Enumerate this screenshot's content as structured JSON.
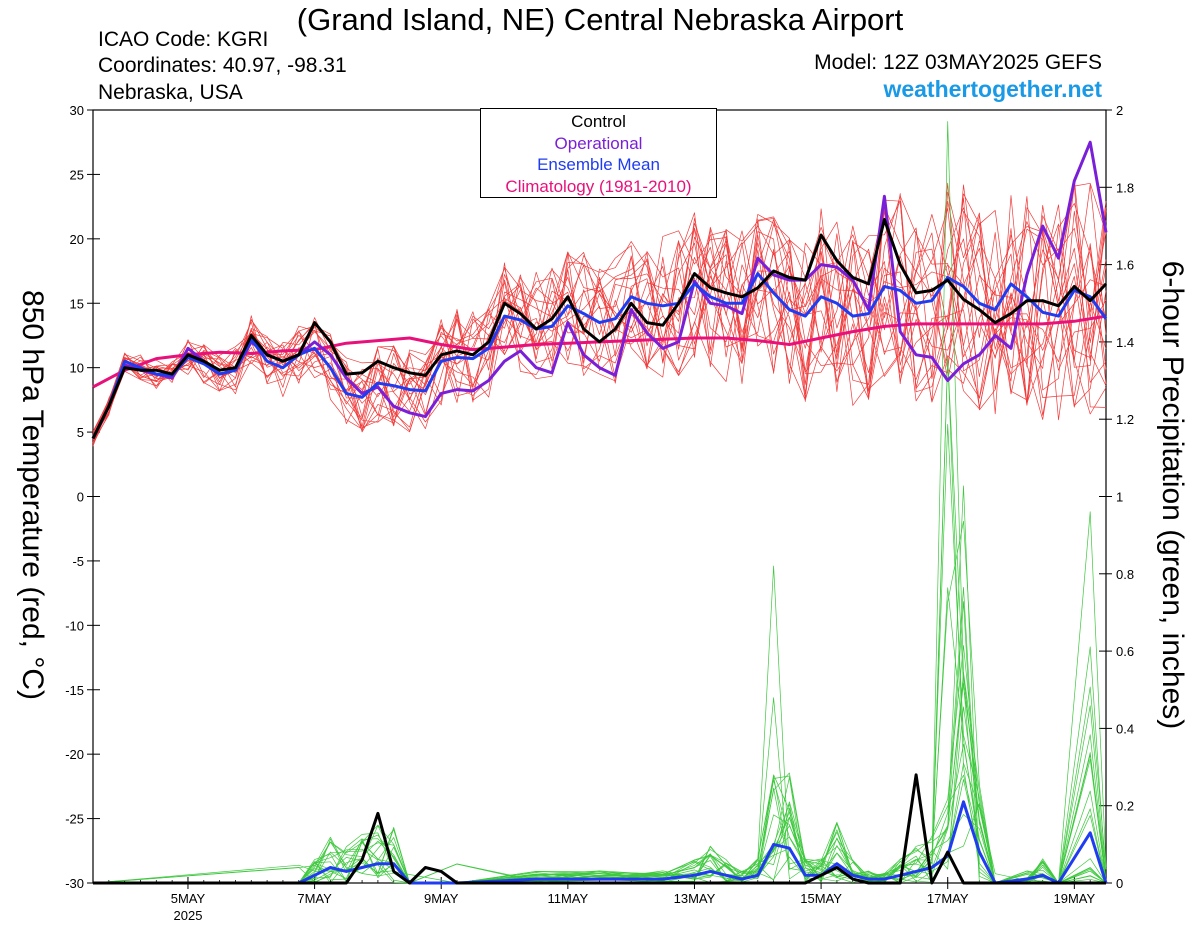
{
  "header": {
    "title": "(Grand Island, NE) Central Nebraska Airport",
    "icao": "ICAO Code: KGRI",
    "coordinates": "Coordinates: 40.97, -98.31",
    "region": "Nebraska, USA",
    "model": "Model: 12Z 03MAY2025 GEFS",
    "site": "weathertogether.net"
  },
  "colors": {
    "ensemble": "#f03c3c",
    "control": "#000000",
    "operational": "#7a1fd8",
    "ensemble_mean": "#1f3cf0",
    "climatology": "#e8107a",
    "precip": "#3ec83e",
    "site": "#1a9ae6"
  },
  "chart_data": {
    "type": "line",
    "ylabel_left": "850 hPa Temperature (red, °C)",
    "ylabel_right": "6-hour Precipitation (green, inches)",
    "ylim_left": [
      -30,
      30
    ],
    "ylim_right": [
      0,
      2
    ],
    "yticks_left": [
      "30",
      "25",
      "20",
      "15",
      "10",
      "5",
      "0",
      "-5",
      "-10",
      "-15",
      "-20",
      "-25",
      "-30"
    ],
    "yticks_right": [
      "2",
      "1.8",
      "1.6",
      "1.4",
      "1.2",
      "1",
      "0.8",
      "0.6",
      "0.4",
      "0.2",
      "0"
    ],
    "xlim": [
      3.5,
      19.5
    ],
    "xticks": [
      {
        "x": 5,
        "label": "5MAY",
        "sub": "2025"
      },
      {
        "x": 7,
        "label": "7MAY",
        "sub": ""
      },
      {
        "x": 9,
        "label": "9MAY",
        "sub": ""
      },
      {
        "x": 11,
        "label": "11MAY",
        "sub": ""
      },
      {
        "x": 13,
        "label": "13MAY",
        "sub": ""
      },
      {
        "x": 15,
        "label": "15MAY",
        "sub": ""
      },
      {
        "x": 17,
        "label": "17MAY",
        "sub": ""
      },
      {
        "x": 19,
        "label": "19MAY",
        "sub": ""
      }
    ],
    "legend": [
      "Control",
      "Operational",
      "Ensemble Mean",
      "Climatology (1981-2010)"
    ],
    "temperature": {
      "control": [
        [
          3.5,
          4.5
        ],
        [
          3.75,
          7
        ],
        [
          4,
          10
        ],
        [
          4.25,
          9.8
        ],
        [
          4.5,
          9.8
        ],
        [
          4.75,
          9.5
        ],
        [
          5,
          11
        ],
        [
          5.25,
          10.5
        ],
        [
          5.5,
          9.8
        ],
        [
          5.75,
          10
        ],
        [
          6,
          12.5
        ],
        [
          6.25,
          11
        ],
        [
          6.5,
          10.5
        ],
        [
          6.75,
          11
        ],
        [
          7,
          13.5
        ],
        [
          7.25,
          12
        ],
        [
          7.5,
          9.5
        ],
        [
          7.75,
          9.6
        ],
        [
          8,
          10.5
        ],
        [
          8.25,
          10
        ],
        [
          8.5,
          9.6
        ],
        [
          8.75,
          9.4
        ],
        [
          9,
          11
        ],
        [
          9.25,
          11.3
        ],
        [
          9.5,
          11
        ],
        [
          9.75,
          12
        ],
        [
          10,
          15
        ],
        [
          10.25,
          14.2
        ],
        [
          10.5,
          13
        ],
        [
          10.75,
          13.8
        ],
        [
          11,
          15.5
        ],
        [
          11.25,
          13
        ],
        [
          11.5,
          12
        ],
        [
          11.75,
          13
        ],
        [
          12,
          15
        ],
        [
          12.25,
          13.5
        ],
        [
          12.5,
          13.3
        ],
        [
          12.75,
          15
        ],
        [
          13,
          17.3
        ],
        [
          13.25,
          16.2
        ],
        [
          13.5,
          15.8
        ],
        [
          13.75,
          15.5
        ],
        [
          14,
          16.2
        ],
        [
          14.25,
          17.5
        ],
        [
          14.5,
          17
        ],
        [
          14.75,
          16.8
        ],
        [
          15,
          20.3
        ],
        [
          15.25,
          18.3
        ],
        [
          15.5,
          17
        ],
        [
          15.75,
          16.5
        ],
        [
          16,
          21.5
        ],
        [
          16.25,
          18
        ],
        [
          16.5,
          15.8
        ],
        [
          16.75,
          16
        ],
        [
          17,
          16.8
        ],
        [
          17.25,
          15.3
        ],
        [
          17.5,
          14.5
        ],
        [
          17.75,
          13.5
        ],
        [
          18,
          14.2
        ],
        [
          18.25,
          15.2
        ],
        [
          18.5,
          15.2
        ],
        [
          18.75,
          14.8
        ],
        [
          19,
          16.3
        ],
        [
          19.25,
          15.2
        ],
        [
          19.5,
          16.5
        ]
      ],
      "operational": [
        [
          3.5,
          4.5
        ],
        [
          3.75,
          7
        ],
        [
          4,
          10.2
        ],
        [
          4.25,
          9.8
        ],
        [
          4.5,
          9.5
        ],
        [
          4.75,
          9.2
        ],
        [
          5,
          11.5
        ],
        [
          5.25,
          10.5
        ],
        [
          5.5,
          9.5
        ],
        [
          5.75,
          9.8
        ],
        [
          6,
          12
        ],
        [
          6.25,
          11
        ],
        [
          6.5,
          10.5
        ],
        [
          6.75,
          11
        ],
        [
          7,
          12
        ],
        [
          7.25,
          11
        ],
        [
          7.5,
          9.2
        ],
        [
          7.75,
          8
        ],
        [
          8,
          8.5
        ],
        [
          8.25,
          7
        ],
        [
          8.5,
          6.5
        ],
        [
          8.75,
          6.2
        ],
        [
          9,
          8
        ],
        [
          9.25,
          8.3
        ],
        [
          9.5,
          8.2
        ],
        [
          9.75,
          9
        ],
        [
          10,
          10.5
        ],
        [
          10.25,
          11.3
        ],
        [
          10.5,
          10
        ],
        [
          10.75,
          9.6
        ],
        [
          11,
          13.5
        ],
        [
          11.25,
          11
        ],
        [
          11.5,
          10
        ],
        [
          11.75,
          9.4
        ],
        [
          12,
          14.5
        ],
        [
          12.25,
          12.7
        ],
        [
          12.5,
          11.5
        ],
        [
          12.75,
          12
        ],
        [
          13,
          16.7
        ],
        [
          13.25,
          15
        ],
        [
          13.5,
          14.8
        ],
        [
          13.75,
          14.2
        ],
        [
          14,
          18.5
        ],
        [
          14.25,
          17.2
        ],
        [
          14.5,
          16.8
        ],
        [
          14.75,
          16.8
        ],
        [
          15,
          18
        ],
        [
          15.25,
          17.8
        ],
        [
          15.5,
          16.8
        ],
        [
          15.75,
          14.5
        ],
        [
          16,
          23.3
        ],
        [
          16.25,
          12.8
        ],
        [
          16.5,
          11
        ],
        [
          16.75,
          10.8
        ],
        [
          17,
          9
        ],
        [
          17.25,
          10.3
        ],
        [
          17.5,
          11
        ],
        [
          17.75,
          12.5
        ],
        [
          18,
          11.5
        ],
        [
          18.25,
          17.2
        ],
        [
          18.5,
          21
        ],
        [
          18.75,
          18.5
        ],
        [
          19,
          24.5
        ],
        [
          19.25,
          27.5
        ],
        [
          19.5,
          20.5
        ]
      ],
      "ensemble_mean": [
        [
          3.5,
          4.5
        ],
        [
          3.75,
          7
        ],
        [
          4,
          10.5
        ],
        [
          4.25,
          10
        ],
        [
          4.5,
          9.5
        ],
        [
          4.75,
          9.4
        ],
        [
          5,
          10.8
        ],
        [
          5.25,
          10.3
        ],
        [
          5.5,
          9.5
        ],
        [
          5.75,
          9.8
        ],
        [
          6,
          12.2
        ],
        [
          6.25,
          10.5
        ],
        [
          6.5,
          10
        ],
        [
          6.75,
          11
        ],
        [
          7,
          11.5
        ],
        [
          7.25,
          10
        ],
        [
          7.5,
          8
        ],
        [
          7.75,
          7.7
        ],
        [
          8,
          8.8
        ],
        [
          8.25,
          8.6
        ],
        [
          8.5,
          8.3
        ],
        [
          8.75,
          8.2
        ],
        [
          9,
          10.5
        ],
        [
          9.25,
          10.8
        ],
        [
          9.5,
          10.7
        ],
        [
          9.75,
          11.5
        ],
        [
          10,
          14
        ],
        [
          10.25,
          13.7
        ],
        [
          10.5,
          13
        ],
        [
          10.75,
          13.2
        ],
        [
          11,
          14.8
        ],
        [
          11.25,
          14.2
        ],
        [
          11.5,
          13.5
        ],
        [
          11.75,
          13.8
        ],
        [
          12,
          15.5
        ],
        [
          12.25,
          15
        ],
        [
          12.5,
          14.8
        ],
        [
          12.75,
          15
        ],
        [
          13,
          16.5
        ],
        [
          13.25,
          15.5
        ],
        [
          13.5,
          15
        ],
        [
          13.75,
          15
        ],
        [
          14,
          17.3
        ],
        [
          14.25,
          15.8
        ],
        [
          14.5,
          14.5
        ],
        [
          14.75,
          14
        ],
        [
          15,
          15.5
        ],
        [
          15.25,
          15
        ],
        [
          15.5,
          14
        ],
        [
          15.75,
          14.2
        ],
        [
          16,
          16.3
        ],
        [
          16.25,
          16
        ],
        [
          16.5,
          15
        ],
        [
          16.75,
          15.2
        ],
        [
          17,
          17
        ],
        [
          17.25,
          16.3
        ],
        [
          17.5,
          15
        ],
        [
          17.75,
          14.5
        ],
        [
          18,
          16.5
        ],
        [
          18.25,
          15.5
        ],
        [
          18.5,
          14.3
        ],
        [
          18.75,
          14
        ],
        [
          19,
          16
        ],
        [
          19.25,
          15.5
        ],
        [
          19.5,
          13.8
        ]
      ],
      "climatology": [
        [
          3.5,
          8.5
        ],
        [
          4,
          9.8
        ],
        [
          4.5,
          10.7
        ],
        [
          5,
          11
        ],
        [
          5.5,
          11.2
        ],
        [
          6,
          11.1
        ],
        [
          6.5,
          11.3
        ],
        [
          7,
          11.4
        ],
        [
          7.5,
          11.9
        ],
        [
          8,
          12.1
        ],
        [
          8.5,
          12.3
        ],
        [
          9,
          11.8
        ],
        [
          9.5,
          11.4
        ],
        [
          10,
          11.6
        ],
        [
          10.5,
          11.8
        ],
        [
          11,
          11.9
        ],
        [
          11.5,
          12.0
        ],
        [
          12,
          12.1
        ],
        [
          12.5,
          12.2
        ],
        [
          13,
          12.3
        ],
        [
          13.5,
          12.3
        ],
        [
          14,
          12.1
        ],
        [
          14.5,
          11.8
        ],
        [
          15,
          12.3
        ],
        [
          15.5,
          12.8
        ],
        [
          16,
          13.2
        ],
        [
          16.5,
          13.4
        ],
        [
          17,
          13.4
        ],
        [
          17.5,
          13.4
        ],
        [
          18,
          13.4
        ],
        [
          18.5,
          13.4
        ],
        [
          19,
          13.6
        ],
        [
          19.5,
          14
        ]
      ]
    },
    "precipitation": {
      "control": [
        [
          3.5,
          0
        ],
        [
          7.5,
          0
        ],
        [
          7.75,
          0.06
        ],
        [
          8,
          0.18
        ],
        [
          8.25,
          0.03
        ],
        [
          8.5,
          0
        ],
        [
          8.75,
          0.04
        ],
        [
          9,
          0.03
        ],
        [
          9.25,
          0
        ],
        [
          14.75,
          0
        ],
        [
          15,
          0.02
        ],
        [
          15.25,
          0.04
        ],
        [
          15.5,
          0.01
        ],
        [
          15.75,
          0
        ],
        [
          16.25,
          0
        ],
        [
          16.5,
          0.28
        ],
        [
          16.75,
          0
        ],
        [
          17,
          0.08
        ],
        [
          17.25,
          0
        ],
        [
          19.5,
          0
        ]
      ],
      "ensemble_mean": [
        [
          3.5,
          0
        ],
        [
          6.75,
          0
        ],
        [
          7,
          0.02
        ],
        [
          7.25,
          0.04
        ],
        [
          7.5,
          0.03
        ],
        [
          7.75,
          0.04
        ],
        [
          8,
          0.05
        ],
        [
          8.25,
          0.05
        ],
        [
          8.5,
          0
        ],
        [
          9.25,
          0
        ],
        [
          10.5,
          0.01
        ],
        [
          11.5,
          0.01
        ],
        [
          12.5,
          0.01
        ],
        [
          13,
          0.02
        ],
        [
          13.25,
          0.03
        ],
        [
          13.5,
          0.02
        ],
        [
          13.75,
          0.01
        ],
        [
          14,
          0.02
        ],
        [
          14.25,
          0.1
        ],
        [
          14.5,
          0.09
        ],
        [
          14.75,
          0.02
        ],
        [
          15,
          0.02
        ],
        [
          15.25,
          0.05
        ],
        [
          15.5,
          0.02
        ],
        [
          15.75,
          0.01
        ],
        [
          16,
          0.01
        ],
        [
          16.25,
          0.02
        ],
        [
          16.5,
          0.03
        ],
        [
          16.75,
          0.04
        ],
        [
          17,
          0.07
        ],
        [
          17.25,
          0.21
        ],
        [
          17.5,
          0.08
        ],
        [
          17.75,
          0
        ],
        [
          18.25,
          0.01
        ],
        [
          18.5,
          0.02
        ],
        [
          18.75,
          0
        ],
        [
          19.25,
          0.13
        ],
        [
          19.5,
          0
        ]
      ]
    }
  }
}
